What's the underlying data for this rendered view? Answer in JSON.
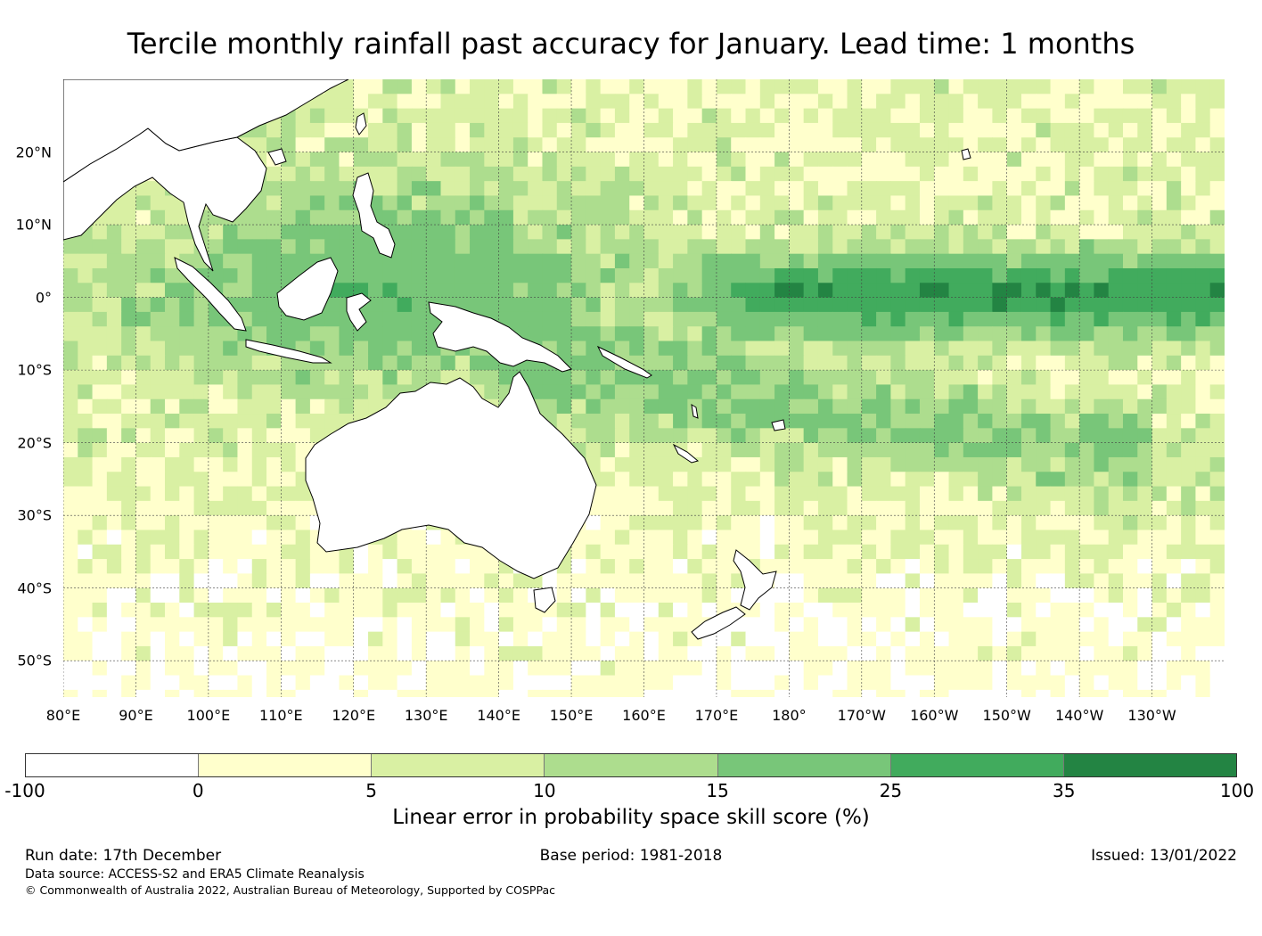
{
  "title": "Tercile monthly rainfall past accuracy for January. Lead time: 1 months",
  "map": {
    "lat_labels": [
      "20°N",
      "10°N",
      "0°",
      "10°S",
      "20°S",
      "30°S",
      "40°S",
      "50°S"
    ],
    "lon_labels": [
      "80°E",
      "90°E",
      "100°E",
      "110°E",
      "120°E",
      "130°E",
      "140°E",
      "150°E",
      "160°E",
      "170°E",
      "180°",
      "170°W",
      "160°W",
      "150°W",
      "140°W",
      "130°W"
    ]
  },
  "colorbar": {
    "ticks": [
      "-100",
      "0",
      "5",
      "10",
      "15",
      "25",
      "35",
      "100"
    ],
    "colors": [
      "#ffffff",
      "#ffffcc",
      "#d9f0a3",
      "#addd8e",
      "#78c679",
      "#41ab5d",
      "#238443"
    ],
    "label": "Linear error in probability space skill score (%)"
  },
  "footer": {
    "run_date": "Run date: 17th December",
    "base_period": "Base period: 1981-2018",
    "issued": "Issued: 13/01/2022",
    "data_source": "Data source: ACCESS-S2 and ERA5 Climate Reanalysis",
    "copyright": "© Commonwealth of Australia 2022, Australian Bureau of Meteorology, Supported by COSPPac"
  }
}
